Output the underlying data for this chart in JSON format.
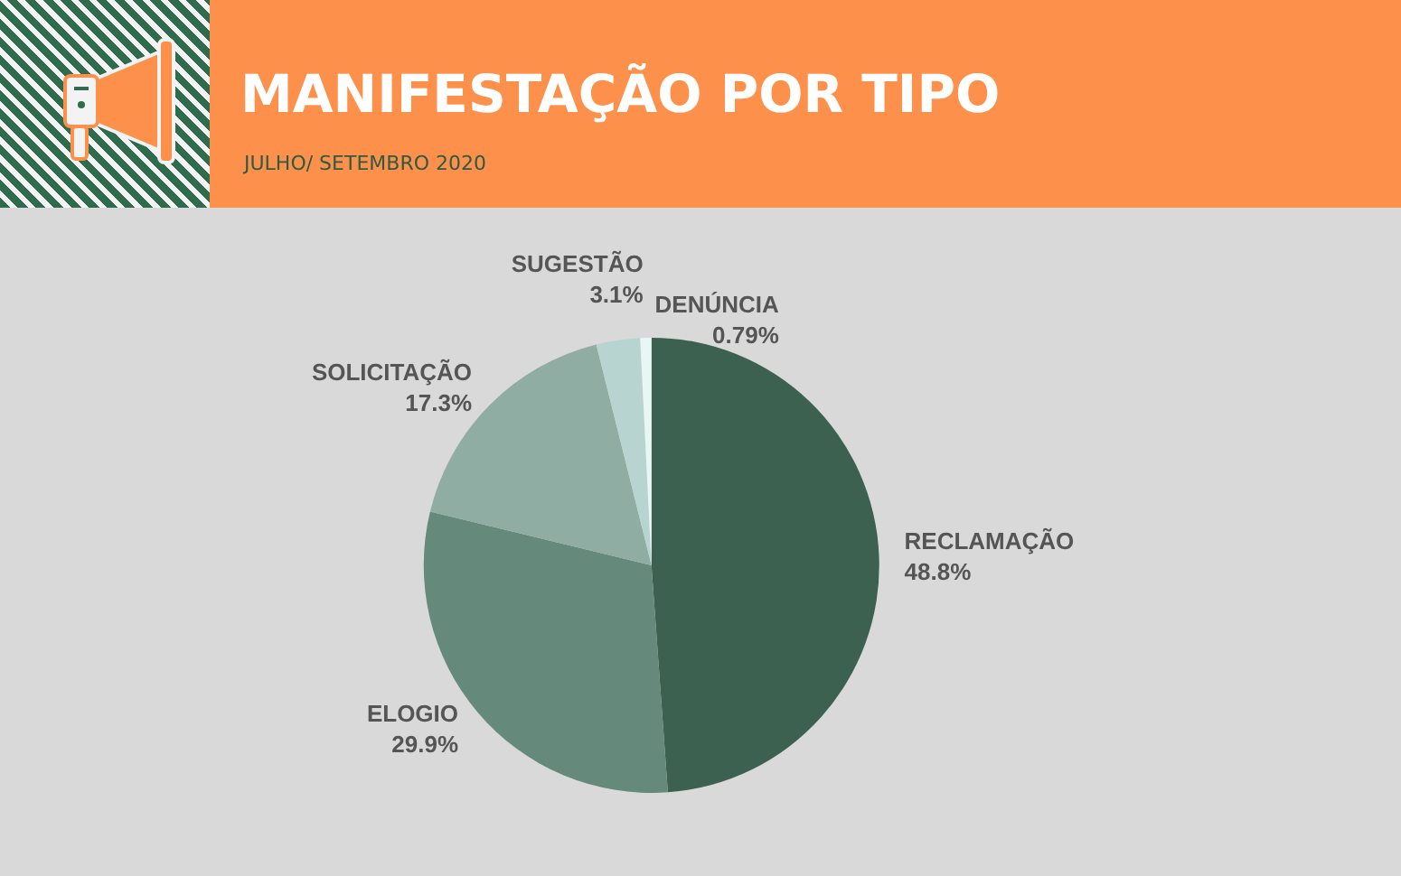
{
  "chart_data": {
    "type": "pie",
    "title": "MANIFESTAÇÃO POR TIPO",
    "subtitle": "JULHO/ SETEMBRO 2020",
    "categories": [
      "RECLAMAÇÃO",
      "ELOGIO",
      "SOLICITAÇÃO",
      "SUGESTÃO",
      "DENÚNCIA"
    ],
    "values": [
      48.8,
      29.9,
      17.3,
      3.1,
      0.79
    ],
    "colors": [
      "#3d6150",
      "#65897a",
      "#8fada3",
      "#b8d4d0",
      "#e8f6f6"
    ],
    "value_labels": [
      "48.8%",
      "29.9%",
      "17.3%",
      "3.1%",
      "0.79%"
    ],
    "legend": false
  }
}
